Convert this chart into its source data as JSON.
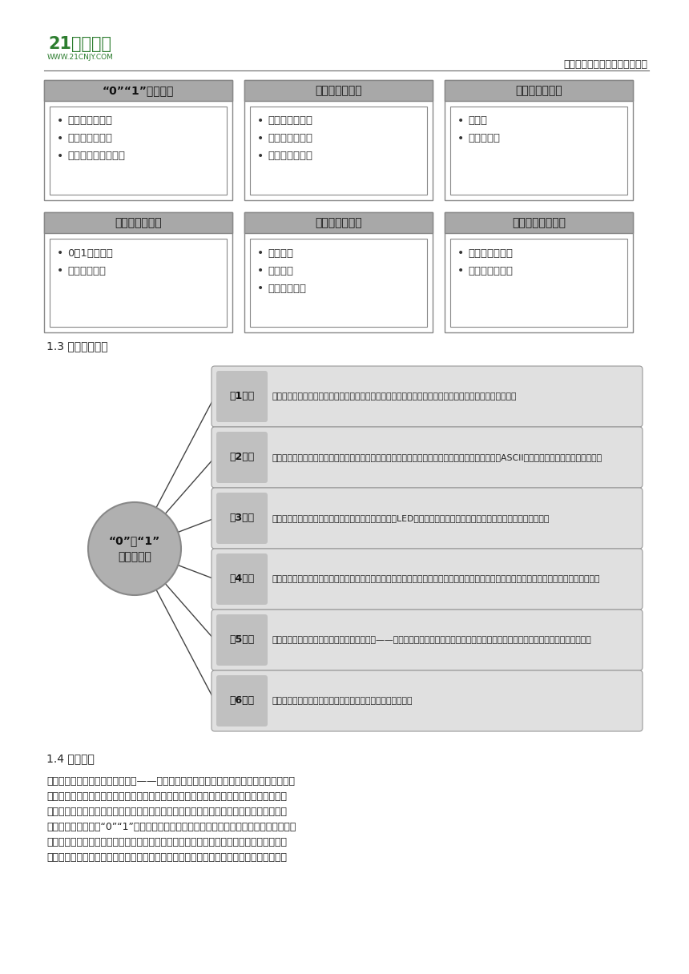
{
  "bg_color": "#ffffff",
  "header_text_right": "中小学教育资源及组卷应用平台",
  "section1_label": "1.3 教学过程图示",
  "top_boxes": [
    {
      "title": "“0”“1”表示信息",
      "items": [
        "二进制与计算机",
        "用二进制表示数",
        "计算更大的二进制数"
      ]
    },
    {
      "title": "秘密信息我会传",
      "items": [
        "神秘留言巧破解",
        "编码解码传信息",
        "字符编码有规范"
      ]
    },
    {
      "title": "图像编码巧理解",
      "items": [
        "像素画",
        "数字显示屏"
      ]
    }
  ],
  "bottom_boxes": [
    {
      "title": "信息存储样式多",
      "items": [
        "0和1信息存储",
        "信息容量单位"
      ]
    },
    {
      "title": "奇偶校验识错误",
      "items": [
        "翻卡魔术",
        "奇偶校验",
        "校验码的应用"
      ]
    },
    {
      "title": "数字化应用优势多",
      "items": [
        "体验数字化生活",
        "数字化及其应用"
      ]
    }
  ],
  "circle_line1": "“0”和“1”",
  "circle_line2": "世界真奇妙",
  "lessons": [
    {
      "label": "第1课时",
      "text": "初步认识二进制，了解二进制如何表示十进制数字，借助卡片学会简单的二进制数与十进制数的相互转化。"
    },
    {
      "label": "第2课时",
      "text": "通过解码、编码秘密信息的活动感受编码在信息传递过程中的重要作用。了解计算机如何利用编码（ASCII码、汉字国标码）表示文字信息。"
    },
    {
      "label": "第3课时",
      "text": "还原黑白像素画，感受计算机图像解码过程，通过模拟LED屏模拟图像显示理解计算机中图像编码、解码的基本流程。"
    },
    {
      "label": "第4课时",
      "text": "了解计算机通过内存、硬盘、光盘存储二进制数据方法。在教师的引导下总结计算机存储信息的基本原理。知道计算机中常用的信息存储单位。"
    },
    {
      "label": "第5课时",
      "text": "通过探究翻卡魔术，理解魔术背后的科学原理——奇偶校验，了解生活中更多校验码的应用，感受校验码的重要性，增强数据安全意识。"
    },
    {
      "label": "第6课时",
      "text": "体验数字化在各个方面的应用，感受数字化表示信息的优势。"
    }
  ],
  "paragraph_title": "1.4 育人价值",
  "paragraph_lines": [
    "本单元着眼于计算机基本原理——二进制，二进制数在管理计算机存储信息方面发挥着",
    "核心作用。数字化信息存储和传输中编码和解码步骤离不开二进制。理解二进制能够解开关",
    "于计算机的许多谜团、掌握数字化编码的基础知识。学生将通过探索活动学习一些数字化编",
    "码的基础知识，了解“0”“1”数字如何构成计算机中的数据，将学生接触到的信息（数字、",
    "字符、图像等）和计算机中的数据建立联系，理解计算机中的数据编码同样是为了保持信息",
    "社会的组织与秩序、能够大大提高信息处理的效率。因此，这部分内容的学习有助于学生认"
  ]
}
